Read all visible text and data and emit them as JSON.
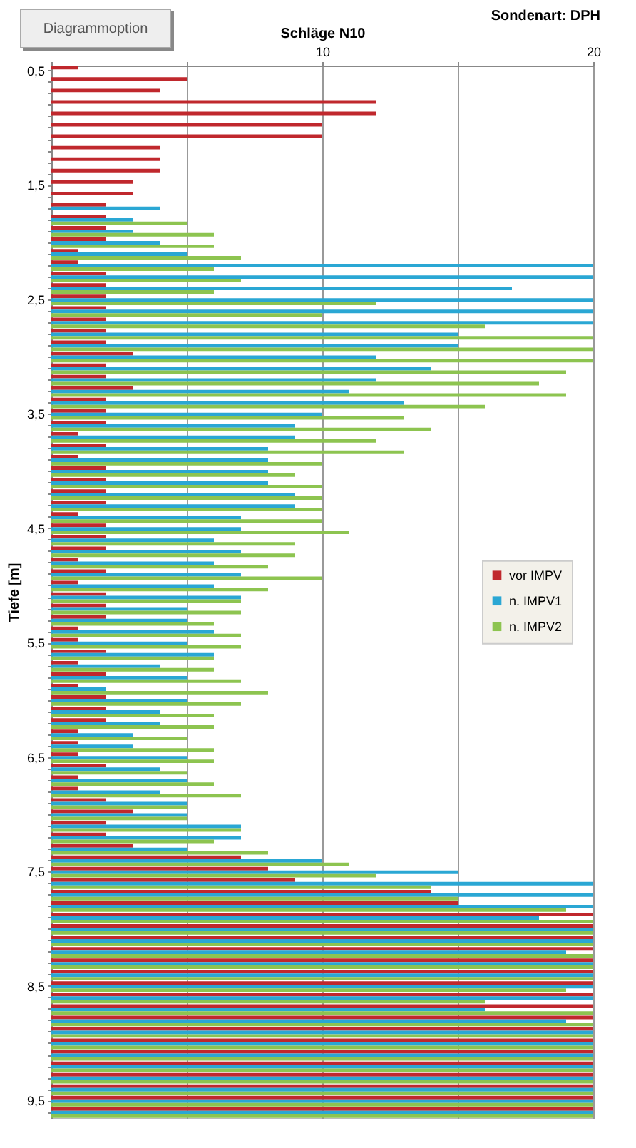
{
  "chart_data": {
    "type": "bar",
    "orientation": "horizontal",
    "title": "Sondenart: DPH",
    "xlabel": "Schläge N10",
    "ylabel": "Tiefe [m]",
    "annotations": [
      "Diagrammoption"
    ],
    "categories": [
      "0,5",
      null,
      null,
      null,
      null,
      null,
      null,
      null,
      null,
      null,
      "1,5",
      null,
      null,
      null,
      null,
      null,
      null,
      null,
      null,
      null,
      "2,5",
      null,
      null,
      null,
      null,
      null,
      null,
      null,
      null,
      null,
      "3,5",
      null,
      null,
      null,
      null,
      null,
      null,
      null,
      null,
      null,
      "4,5",
      null,
      null,
      null,
      null,
      null,
      null,
      null,
      null,
      null,
      "5,5",
      null,
      null,
      null,
      null,
      null,
      null,
      null,
      null,
      null,
      "6,5",
      null,
      null,
      null,
      null,
      null,
      null,
      null,
      null,
      null,
      "7,5",
      null,
      null,
      null,
      null,
      null,
      null,
      null,
      null,
      null,
      "8,5",
      null,
      null,
      null,
      null,
      null,
      null,
      null,
      null,
      null,
      "9,5",
      null
    ],
    "series": [
      {
        "name": "vor IMPV",
        "color": "#c0282d",
        "values": [
          1,
          5,
          4,
          12,
          12,
          10,
          10,
          4,
          4,
          4,
          3,
          3,
          2,
          2,
          2,
          2,
          1,
          1,
          2,
          2,
          2,
          2,
          2,
          2,
          2,
          3,
          2,
          2,
          3,
          2,
          2,
          2,
          1,
          2,
          1,
          2,
          2,
          2,
          2,
          1,
          2,
          2,
          2,
          1,
          2,
          1,
          2,
          2,
          2,
          1,
          1,
          2,
          1,
          2,
          1,
          2,
          2,
          2,
          1,
          1,
          1,
          2,
          1,
          1,
          2,
          3,
          2,
          2,
          3,
          7,
          8,
          9,
          14,
          15,
          20,
          20,
          20,
          20,
          20,
          20,
          20,
          20,
          20,
          20,
          20,
          20,
          20,
          20,
          20,
          20,
          20,
          20
        ]
      },
      {
        "name": "n. IMPV1",
        "color": "#2aa7d4",
        "values": [
          null,
          null,
          null,
          null,
          null,
          null,
          null,
          null,
          null,
          null,
          null,
          null,
          4,
          3,
          3,
          4,
          5,
          20,
          20,
          17,
          20,
          20,
          20,
          15,
          15,
          12,
          14,
          12,
          11,
          13,
          10,
          9,
          9,
          8,
          8,
          8,
          8,
          9,
          9,
          7,
          7,
          6,
          7,
          6,
          7,
          6,
          7,
          5,
          5,
          6,
          5,
          6,
          4,
          5,
          2,
          5,
          4,
          4,
          3,
          3,
          5,
          4,
          5,
          4,
          5,
          5,
          7,
          7,
          5,
          10,
          15,
          20,
          20,
          20,
          18,
          20,
          20,
          19,
          20,
          20,
          20,
          20,
          16,
          19,
          20,
          20,
          20,
          20,
          20,
          20,
          20,
          20
        ]
      },
      {
        "name": "n. IMPV2",
        "color": "#8dc450",
        "values": [
          null,
          null,
          null,
          null,
          null,
          null,
          null,
          null,
          null,
          null,
          null,
          null,
          null,
          5,
          6,
          6,
          7,
          6,
          7,
          6,
          12,
          10,
          16,
          20,
          20,
          20,
          19,
          18,
          19,
          16,
          13,
          14,
          12,
          13,
          10,
          9,
          10,
          10,
          10,
          10,
          11,
          9,
          9,
          8,
          10,
          8,
          7,
          7,
          6,
          7,
          7,
          6,
          6,
          7,
          8,
          7,
          6,
          6,
          5,
          6,
          6,
          5,
          6,
          7,
          5,
          5,
          7,
          6,
          8,
          11,
          12,
          14,
          15,
          19,
          20,
          20,
          20,
          20,
          20,
          20,
          19,
          16,
          20,
          20,
          20,
          20,
          20,
          20,
          20,
          20,
          20,
          20
        ]
      }
    ],
    "xlim": [
      0,
      20
    ],
    "xticks": [
      {
        "value": 0,
        "label": null
      },
      {
        "value": 5,
        "label": null
      },
      10,
      {
        "value": 15,
        "label": null
      },
      20
    ],
    "grid": "x",
    "legend": "right"
  }
}
